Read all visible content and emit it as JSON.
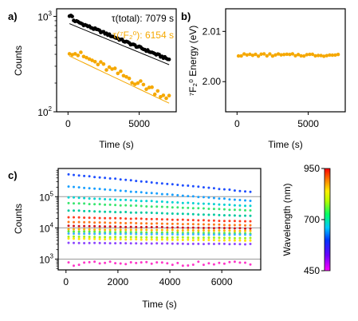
{
  "chart_data": [
    {
      "panel": "a)",
      "type": "scatter",
      "yscale": "log",
      "xlabel": "Time (s)",
      "ylabel": "Counts",
      "xlim": [
        -800,
        7600
      ],
      "ylim": [
        100,
        1200
      ],
      "xticks": [
        "0",
        "5000"
      ],
      "yticks": [
        "10^2",
        "10^3"
      ],
      "annotations": [
        {
          "text": "τ(total): 7079 s",
          "color": "#000000"
        },
        {
          "text": "τ(⁷F₂⁰): 6154 s",
          "color": "#f5a800"
        }
      ],
      "series": [
        {
          "color": "#000000",
          "x_start": 100,
          "x_step": 100,
          "count": 71,
          "amplitude": 960,
          "tau": 7079,
          "fit_amplitude": 850,
          "fit_tau": 7079
        },
        {
          "color": "#f5a800",
          "x_start": 100,
          "x_step": 200,
          "count": 36,
          "amplitude": 450,
          "tau": 6154,
          "fit_amplitude": 390,
          "fit_tau": 6154
        }
      ]
    },
    {
      "panel": "b)",
      "type": "scatter",
      "xlabel": "Time (s)",
      "ylabel": "⁷F₂⁰ Energy  (eV)",
      "xlim": [
        -800,
        7600
      ],
      "ylim": [
        1.994,
        2.0145
      ],
      "xticks": [
        "0",
        "5000"
      ],
      "yticks": [
        "2.00",
        "2.01"
      ],
      "series": [
        {
          "color": "#f5a800",
          "x_start": 100,
          "x_step": 200,
          "count": 36,
          "y": 2.0053
        }
      ]
    },
    {
      "panel": "c)",
      "type": "scatter",
      "yscale": "log",
      "xlabel": "Time (s)",
      "ylabel": "Counts",
      "xlim": [
        -300,
        7500
      ],
      "ylim": [
        450,
        800000
      ],
      "xticks": [
        "0",
        "2000",
        "4000",
        "6000"
      ],
      "yticks": [
        "10^3",
        "10^4",
        "10^5"
      ],
      "reference_lines": [
        1000,
        10000,
        100000
      ],
      "series": [
        {
          "color": "#1f4fff",
          "start": 520000,
          "end": 140000
        },
        {
          "color": "#19a0ff",
          "start": 210000,
          "end": 72000
        },
        {
          "color": "#00d2d2",
          "start": 95000,
          "end": 50000
        },
        {
          "color": "#37e66e",
          "start": 62000,
          "end": 36000
        },
        {
          "color": "#00c8a0",
          "start": 36000,
          "end": 24000
        },
        {
          "color": "#ff3b1f",
          "start": 22000,
          "end": 16000
        },
        {
          "color": "#ff7a1a",
          "start": 15500,
          "end": 12000
        },
        {
          "color": "#d2141e",
          "start": 11500,
          "end": 9500
        },
        {
          "color": "#ffb400",
          "start": 9000,
          "end": 8000
        },
        {
          "color": "#5aeb3c",
          "start": 7600,
          "end": 6600
        },
        {
          "color": "#3cb4ff",
          "start": 6600,
          "end": 6000
        },
        {
          "color": "#a0f01e",
          "start": 5200,
          "end": 4700
        },
        {
          "color": "#ffe600",
          "start": 4500,
          "end": 3900
        },
        {
          "color": "#8c46ff",
          "start": 3300,
          "end": 3000
        },
        {
          "color": "#ff37c8",
          "start": 720,
          "end": 720
        }
      ],
      "colorbar": {
        "label": "Wavelength (nm)",
        "ticks": [
          "950",
          "700",
          "450"
        ],
        "range": [
          450,
          950
        ]
      }
    }
  ]
}
